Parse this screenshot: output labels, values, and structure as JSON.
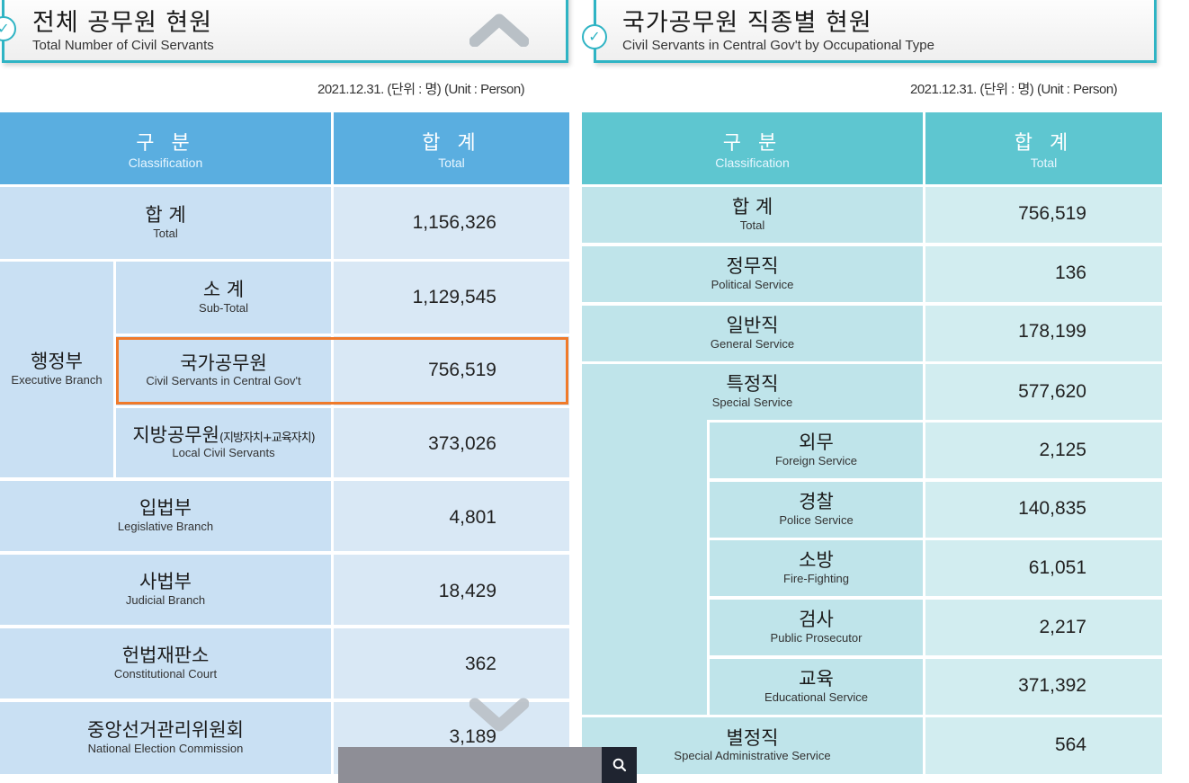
{
  "left_panel": {
    "title": "전체 공무원 현원",
    "subtitle": "Total Number of Civil Servants",
    "date_note": "2021.12.31. (단위 : 명) (Unit : Person)",
    "header": {
      "class_kr": "구 분",
      "class_en": "Classification",
      "total_kr": "합 계",
      "total_en": "Total"
    },
    "rows": {
      "total": {
        "kr": "합 계",
        "en": "Total",
        "value": "1,156,326"
      },
      "executive": {
        "kr": "행정부",
        "en": "Executive Branch"
      },
      "subtotal": {
        "kr": "소 계",
        "en": "Sub-Total",
        "value": "1,129,545"
      },
      "central": {
        "kr": "국가공무원",
        "en": "Civil Servants in Central Gov't",
        "value": "756,519"
      },
      "local": {
        "kr": "지방공무원",
        "kr_note": "(지방자치+교육자치)",
        "en": "Local Civil Servants",
        "value": "373,026"
      },
      "legislative": {
        "kr": "입법부",
        "en": "Legislative Branch",
        "value": "4,801"
      },
      "judicial": {
        "kr": "사법부",
        "en": "Judicial Branch",
        "value": "18,429"
      },
      "constitutional": {
        "kr": "헌법재판소",
        "en": "Constitutional Court",
        "value": "362"
      },
      "election": {
        "kr": "중앙선거관리위원회",
        "en": "National Election Commission",
        "value": "3,189"
      }
    }
  },
  "right_panel": {
    "title": "국가공무원 직종별 현원",
    "subtitle": "Civil Servants in Central Gov't by Occupational Type",
    "date_note": "2021.12.31. (단위 : 명) (Unit : Person)",
    "header": {
      "class_kr": "구 분",
      "class_en": "Classification",
      "total_kr": "합 계",
      "total_en": "Total"
    },
    "rows": {
      "total": {
        "kr": "합 계",
        "en": "Total",
        "value": "756,519"
      },
      "political": {
        "kr": "정무직",
        "en": "Political Service",
        "value": "136"
      },
      "general": {
        "kr": "일반직",
        "en": "General Service",
        "value": "178,199"
      },
      "special": {
        "kr": "특정직",
        "en": "Special Service",
        "value": "577,620"
      },
      "foreign": {
        "kr": "외무",
        "en": "Foreign Service",
        "value": "2,125"
      },
      "police": {
        "kr": "경찰",
        "en": "Police Service",
        "value": "140,835"
      },
      "fire": {
        "kr": "소방",
        "en": "Fire-Fighting",
        "value": "61,051"
      },
      "prosecutor": {
        "kr": "검사",
        "en": "Public Prosecutor",
        "value": "2,217"
      },
      "education": {
        "kr": "교육",
        "en": "Educational Service",
        "value": "371,392"
      },
      "special_admin": {
        "kr": "별정직",
        "en": "Special Administrative Service",
        "value": "564"
      }
    }
  },
  "colors": {
    "left_header": "#5aaee0",
    "left_cell": "#c9e0f3",
    "left_value": "#d9e8f5",
    "right_header": "#5ec6d0",
    "right_cell": "#bfe4ea",
    "right_value": "#d2edf0",
    "highlight": "#f07a2a",
    "accent": "#2fb4c4"
  },
  "icons": {
    "check": "check-circle-icon",
    "scroll_up": "chevron-up-icon",
    "scroll_down": "chevron-down-icon",
    "search": "search-icon"
  },
  "search": {
    "placeholder": ""
  }
}
